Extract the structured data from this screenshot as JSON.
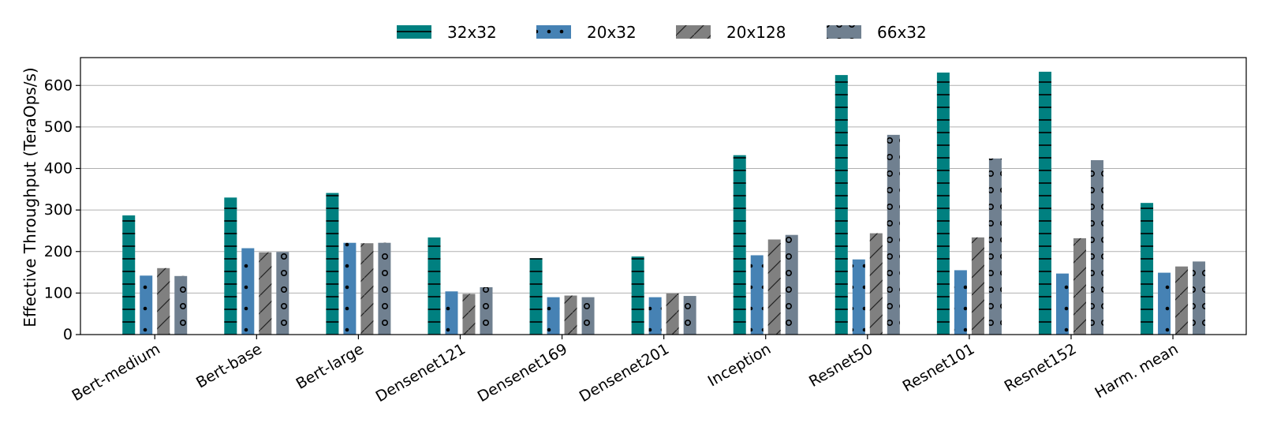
{
  "chart_data": {
    "type": "bar",
    "ylabel": "Effective Throughput (TeraOps/s)",
    "xlabel": "",
    "ylim": [
      0,
      667
    ],
    "yticks": [
      0,
      100,
      200,
      300,
      400,
      500,
      600
    ],
    "grid": "horizontal",
    "legend_position": "top-center",
    "categories": [
      "Bert-medium",
      "Bert-base",
      "Bert-large",
      "Densenet121",
      "Densenet169",
      "Densenet201",
      "Inception",
      "Resnet50",
      "Resnet101",
      "Resnet152",
      "Harm. mean"
    ],
    "series": [
      {
        "name": "32x32",
        "color": "#008080",
        "hatch": "horizontal-lines",
        "values": [
          287,
          330,
          341,
          234,
          184,
          188,
          432,
          625,
          631,
          633,
          317
        ]
      },
      {
        "name": "20x32",
        "color": "#4682b4",
        "hatch": "dots",
        "values": [
          142,
          208,
          221,
          104,
          90,
          90,
          191,
          181,
          155,
          147,
          149
        ]
      },
      {
        "name": "20x128",
        "color": "#808080",
        "hatch": "diagonal-lines",
        "values": [
          160,
          198,
          220,
          98,
          94,
          99,
          229,
          244,
          234,
          232,
          164
        ]
      },
      {
        "name": "66x32",
        "color": "#708090",
        "hatch": "circles",
        "values": [
          141,
          199,
          221,
          114,
          90,
          93,
          240,
          481,
          424,
          420,
          176
        ]
      }
    ]
  }
}
